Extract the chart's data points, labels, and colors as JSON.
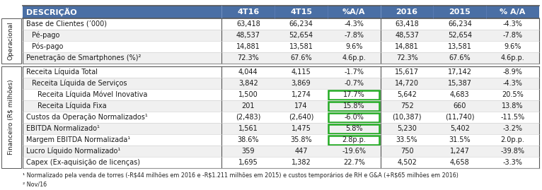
{
  "header": [
    "DESCRIÇÃO",
    "4T16",
    "4T15",
    "%A/A",
    "2016",
    "2015",
    "% A/A"
  ],
  "section_label_operacional": "Operacional",
  "section_label_financeiro": "Financeiro (R$ milhões)",
  "operacional_rows": [
    [
      "Base de Clientes (’000)",
      "63,418",
      "66,234",
      "-4.3%",
      "63,418",
      "66,234",
      "-4.3%"
    ],
    [
      "Pé-pago",
      "48,537",
      "52,654",
      "-7.8%",
      "48,537",
      "52,654",
      "-7.8%"
    ],
    [
      "Pós-pago",
      "14,881",
      "13,581",
      "9.6%",
      "14,881",
      "13,581",
      "9.6%"
    ],
    [
      "Penetração de Smartphones (%)²",
      "72.3%",
      "67.6%",
      "4.6p.p.",
      "72.3%",
      "67.6%",
      "4.6p.p."
    ]
  ],
  "financeiro_rows": [
    [
      "Receita Líquida Total",
      "4,044",
      "4,115",
      "-1.7%",
      "15,617",
      "17,142",
      "-8.9%"
    ],
    [
      "Receita Líquida de Serviços",
      "3,842",
      "3,869",
      "-0.7%",
      "14,720",
      "15,387",
      "-4.3%"
    ],
    [
      "Receita Líquida Móvel Inovativa",
      "1,500",
      "1,274",
      "17.7%",
      "5,642",
      "4,683",
      "20.5%"
    ],
    [
      "Receita Líquida Fixa",
      "201",
      "174",
      "15.8%",
      "752",
      "660",
      "13.8%"
    ],
    [
      "Custos da Operação Normalizados¹",
      "(2,483)",
      "(2,640)",
      "-6.0%",
      "(10,387)",
      "(11,740)",
      "-11.5%"
    ],
    [
      "EBITDA Normalizado¹",
      "1,561",
      "1,475",
      "5.8%",
      "5,230",
      "5,402",
      "-3.2%"
    ],
    [
      "Margem EBITDA Normalizada¹",
      "38.6%",
      "35.8%",
      "2.8p.p.",
      "33.5%",
      "31.5%",
      "2.0p.p."
    ],
    [
      "Lucro Líquido Normalizado¹",
      "359",
      "447",
      "-19.6%",
      "750",
      "1,247",
      "-39.8%"
    ],
    [
      "Capex (Ex-aquisição de licenças)",
      "1,695",
      "1,382",
      "22.7%",
      "4,502",
      "4,658",
      "-3.3%"
    ]
  ],
  "op_indent": [
    false,
    true,
    true,
    false
  ],
  "fin_indent": [
    false,
    true,
    true,
    true,
    false,
    false,
    false,
    false,
    false
  ],
  "fin_indent2": [
    false,
    false,
    true,
    true,
    false,
    false,
    false,
    false,
    false
  ],
  "highlighted_fin_rows": [
    2,
    3,
    4,
    5,
    6
  ],
  "footnote1": "¹ Normalizado pela venda de torres (-R$44 milhões em 2016 e -R$1.211 milhões em 2015) e custos temporários de RH e G&A (+R$65 milhões em 2016)",
  "footnote2": "² Nov/16",
  "header_bg": "#4a6fa5",
  "header_fg": "#FFFFFF",
  "row_bg_even": "#FFFFFF",
  "row_bg_odd": "#F0F0F0",
  "section_box_color": "#888888",
  "highlight_color": "#22AA22",
  "text_dark": "#1a1a1a",
  "border_light": "#CCCCCC",
  "border_dark": "#555555",
  "font_size": 7.0,
  "header_font_size": 8.0,
  "footnote_font_size": 5.8,
  "section_font_size": 6.5,
  "col_widths_rel": [
    3.2,
    0.85,
    0.85,
    0.85,
    0.85,
    0.85,
    0.85
  ]
}
